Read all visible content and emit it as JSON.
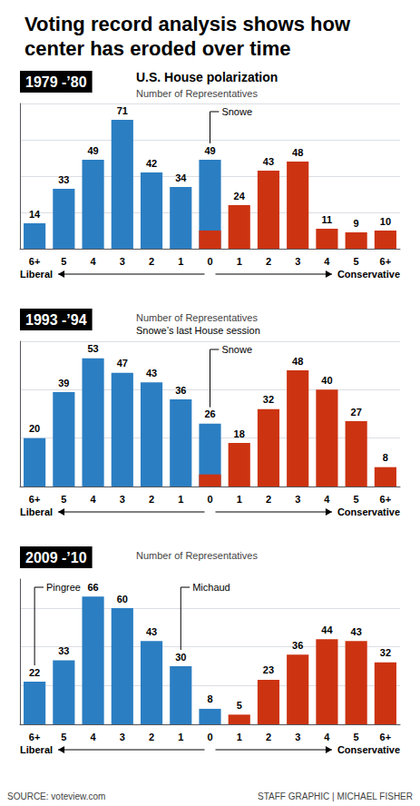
{
  "title": "Voting record analysis shows how\ncenter has eroded over time",
  "source": "SOURCE: voteview.com",
  "credit": "STAFF GRAPHIC | MICHAEL FISHER",
  "chart_data": [
    {
      "type": "bar",
      "title": "1979 -’80",
      "subtitle": "U.S. House polarization",
      "ylabel": "Number of Representatives",
      "categories": [
        "6+",
        "5",
        "4",
        "3",
        "2",
        "1",
        "0",
        "1",
        "2",
        "3",
        "4",
        "5",
        "6+"
      ],
      "series": [
        {
          "values": [
            14,
            33,
            49,
            71,
            42,
            34,
            49,
            24,
            43,
            48,
            11,
            9,
            10
          ],
          "colors": [
            "#2B7EC2",
            "#2B7EC2",
            "#2B7EC2",
            "#2B7EC2",
            "#2B7EC2",
            "#2B7EC2",
            "#2B7EC2",
            "#CC3311",
            "#CC3311",
            "#CC3311",
            "#CC3311",
            "#CC3311",
            "#CC3311"
          ],
          "data_labels": true
        },
        {
          "values": [
            null,
            null,
            null,
            null,
            null,
            null,
            10,
            null,
            null,
            null,
            null,
            null,
            null
          ],
          "color": "#CC3311"
        }
      ],
      "stacked": false,
      "ylim": [
        0,
        80
      ],
      "yticks": [
        0,
        20,
        40,
        60,
        80
      ],
      "grid": true,
      "tick_labels": "x",
      "left_label": "Liberal",
      "right_label": "Conservative",
      "annotations": [
        {
          "text": "Snowe",
          "bar_index": 6
        }
      ]
    },
    {
      "type": "bar",
      "title": "1993 -’94",
      "ylabel": "Number of Representatives",
      "categories": [
        "6+",
        "5",
        "4",
        "3",
        "2",
        "1",
        "0",
        "1",
        "2",
        "3",
        "4",
        "5",
        "6+"
      ],
      "series": [
        {
          "values": [
            20,
            39,
            53,
            47,
            43,
            36,
            26,
            18,
            32,
            48,
            40,
            27,
            8
          ],
          "colors": [
            "#2B7EC2",
            "#2B7EC2",
            "#2B7EC2",
            "#2B7EC2",
            "#2B7EC2",
            "#2B7EC2",
            "#2B7EC2",
            "#CC3311",
            "#CC3311",
            "#CC3311",
            "#CC3311",
            "#CC3311",
            "#CC3311"
          ],
          "data_labels": true
        },
        {
          "values": [
            null,
            null,
            null,
            null,
            null,
            null,
            5,
            null,
            null,
            null,
            null,
            null,
            null
          ],
          "color": "#CC3311"
        }
      ],
      "stacked": false,
      "ylim": [
        0,
        60
      ],
      "yticks": [
        0,
        20,
        40,
        60
      ],
      "grid": true,
      "tick_labels": "x",
      "left_label": "Liberal",
      "right_label": "Conservative",
      "annotations": [
        {
          "text": "Snowe’s last House session"
        },
        {
          "text": "Snowe",
          "bar_index": 6
        }
      ]
    },
    {
      "type": "bar",
      "title": "2009 -’10",
      "ylabel": "Number of Representatives",
      "categories": [
        "6+",
        "5",
        "4",
        "3",
        "2",
        "1",
        "0",
        "1",
        "2",
        "3",
        "4",
        "5",
        "6+"
      ],
      "series": [
        {
          "values": [
            22,
            33,
            66,
            60,
            43,
            30,
            8,
            5,
            23,
            36,
            44,
            43,
            32
          ],
          "colors": [
            "#2B7EC2",
            "#2B7EC2",
            "#2B7EC2",
            "#2B7EC2",
            "#2B7EC2",
            "#2B7EC2",
            "#2B7EC2",
            "#CC3311",
            "#CC3311",
            "#CC3311",
            "#CC3311",
            "#CC3311",
            "#CC3311"
          ],
          "data_labels": true
        }
      ],
      "stacked": false,
      "ylim": [
        0,
        75
      ],
      "yticks": [
        0,
        20,
        40,
        60
      ],
      "grid": true,
      "tick_labels": "x",
      "left_label": "Liberal",
      "right_label": "Conservative",
      "annotations": [
        {
          "text": "Pingree",
          "bar_index": 0
        },
        {
          "text": "Michaud",
          "bar_index": 5
        }
      ]
    }
  ]
}
